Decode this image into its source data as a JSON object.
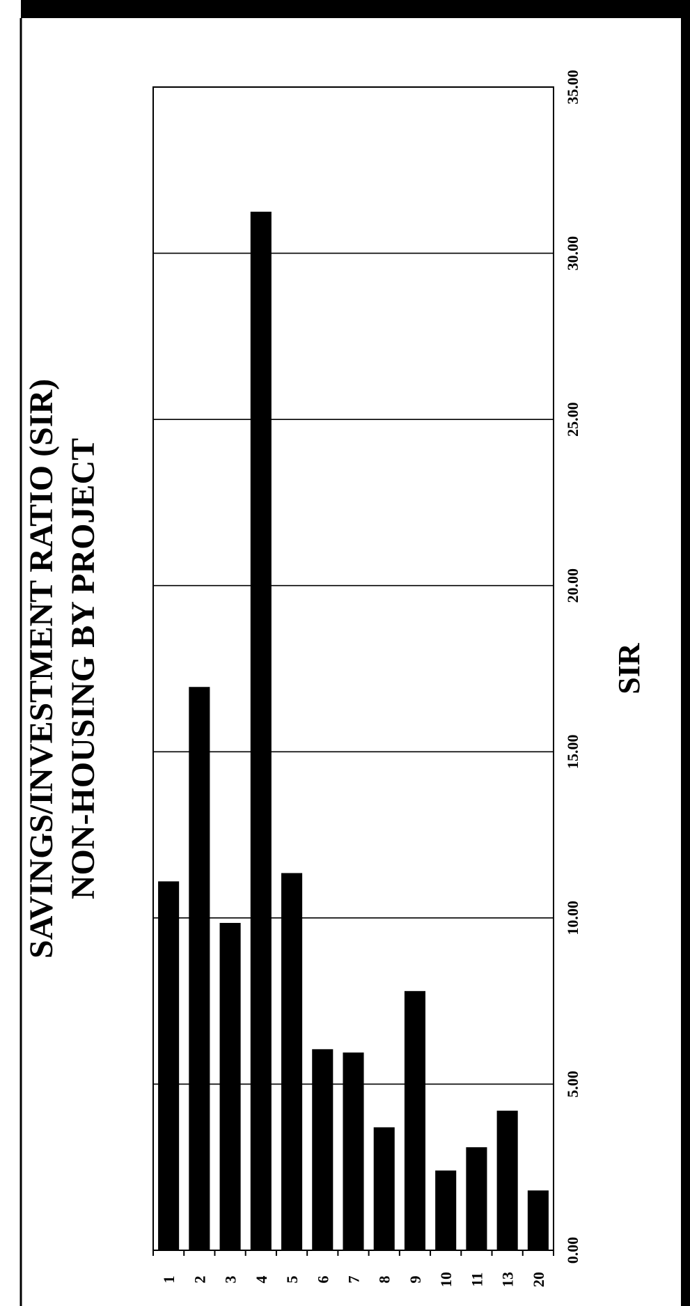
{
  "colors": {
    "bar": "#000000",
    "frame": "#000000",
    "background": "#ffffff"
  },
  "chart_data": {
    "type": "bar",
    "orientation": "horizontal, page rotated 90 degrees counter-clockwise",
    "title": "SAVINGS/INVESTMENT RATIO (SIR)",
    "subtitle": "NON-HOUSING BY PROJECT",
    "xlabel": "",
    "ylabel": "SIR",
    "categories": [
      "1",
      "2",
      "3",
      "4",
      "5",
      "6",
      "7",
      "8",
      "9",
      "10",
      "11",
      "13",
      "20"
    ],
    "values": [
      11.1,
      16.95,
      9.85,
      31.25,
      11.35,
      6.05,
      5.95,
      3.7,
      7.8,
      2.4,
      3.1,
      4.2,
      1.8
    ],
    "ylim": [
      0,
      35
    ],
    "yticks": [
      "0.00",
      "5.00",
      "10.00",
      "15.00",
      "20.00",
      "25.00",
      "30.00",
      "35.00"
    ],
    "grid": true,
    "legend": "none"
  }
}
